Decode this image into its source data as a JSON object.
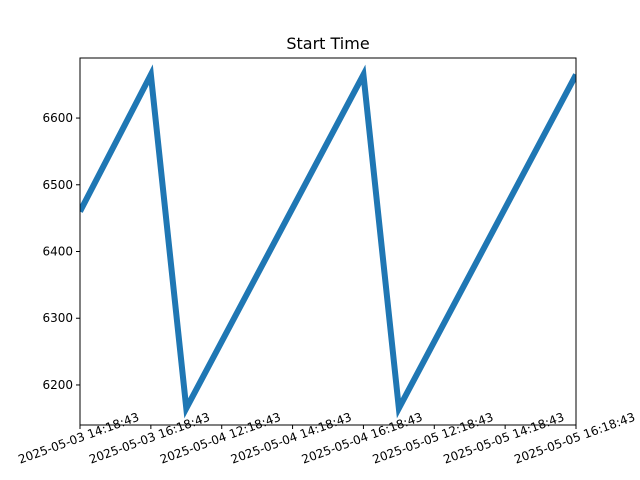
{
  "chart_data": {
    "type": "line",
    "title": "Start Time",
    "xlabel": "",
    "ylabel": "",
    "grid": false,
    "legend": "none",
    "categories": [
      "05-03 14:18:43",
      "05-03 16:18:43",
      "05-04 12:18:43",
      "05-04 14:18:43",
      "05-04 16:18:43",
      "05-05 12:18:43",
      "05-05 14:18:43",
      "05-05 16:18:43"
    ],
    "x_tick_labels": [
      "2025-05-03 14:18:43",
      "2025-05-03 16:18:43",
      "2025-05-04 12:18:43",
      "2025-05-04 14:18:43",
      "2025-05-04 16:18:43",
      "2025-05-05 12:18:43",
      "2025-05-05 14:18:43",
      "2025-05-05 16:18:43"
    ],
    "y_ticks": [
      6200,
      6300,
      6400,
      6500,
      6600
    ],
    "ylim": [
      6140,
      6690
    ],
    "xlim": [
      0,
      7
    ],
    "series": [
      {
        "color": "#1f77b4",
        "x": [
          0,
          1,
          1.5,
          4,
          4.5,
          7
        ],
        "y": [
          6460,
          6665,
          6165,
          6665,
          6165,
          6665
        ]
      }
    ]
  }
}
